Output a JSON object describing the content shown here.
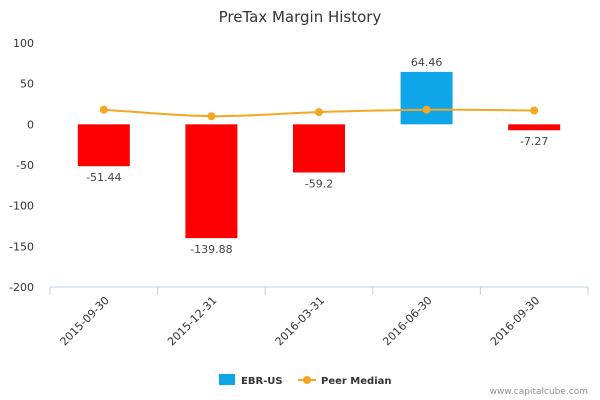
{
  "chart_data": {
    "type": "bar",
    "title": "PreTax Margin History",
    "categories": [
      "2015-09-30",
      "2015-12-31",
      "2016-03-31",
      "2016-06-30",
      "2016-09-30"
    ],
    "series": [
      {
        "name": "EBR-US",
        "kind": "bar",
        "values": [
          -51.44,
          -139.88,
          -59.2,
          64.46,
          -7.27
        ],
        "data_labels": [
          "-51.44",
          "-139.88",
          "-59.2",
          "64.46",
          "-7.27"
        ],
        "color_positive": "#0ea5e9",
        "color_negative": "#ff0000"
      },
      {
        "name": "Peer Median",
        "kind": "line",
        "values": [
          18,
          10,
          15,
          18,
          17
        ],
        "color": "#f5a623"
      }
    ],
    "ylim": [
      -200,
      100
    ],
    "yticks": [
      100,
      50,
      0,
      -50,
      -100,
      -150,
      -200
    ],
    "legend_position": "bottom",
    "grid": false
  },
  "credit": "www.capitalcube.com"
}
